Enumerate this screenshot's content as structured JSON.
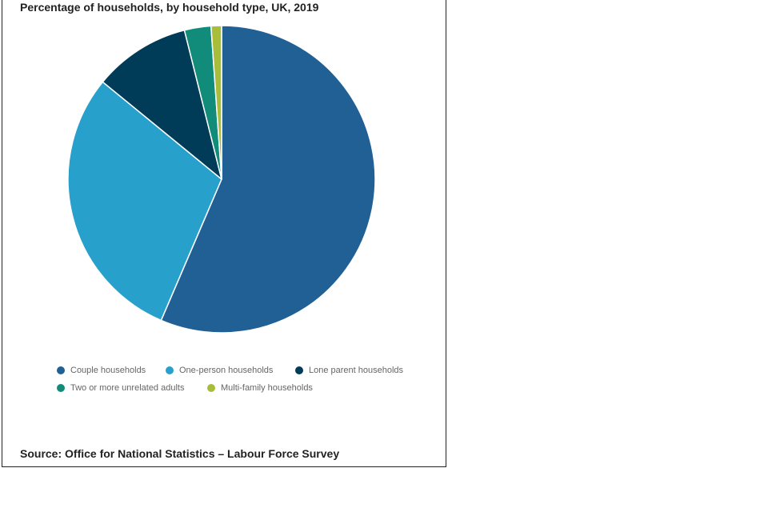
{
  "chart_data": {
    "type": "pie",
    "title": "Percentage of households, by household type, UK, 2019",
    "categories": [
      "Couple households",
      "One-person households",
      "Lone parent households",
      "Two or more unrelated adults",
      "Multi-family households"
    ],
    "values": [
      56.5,
      29.5,
      10.2,
      2.8,
      1.1
    ],
    "unit": "%",
    "colors": [
      "#206095",
      "#27a0cc",
      "#003c57",
      "#118c7b",
      "#a8bd3a"
    ],
    "legend_position": "bottom",
    "source": "Source: Office for National Statistics – Labour Force Survey"
  }
}
